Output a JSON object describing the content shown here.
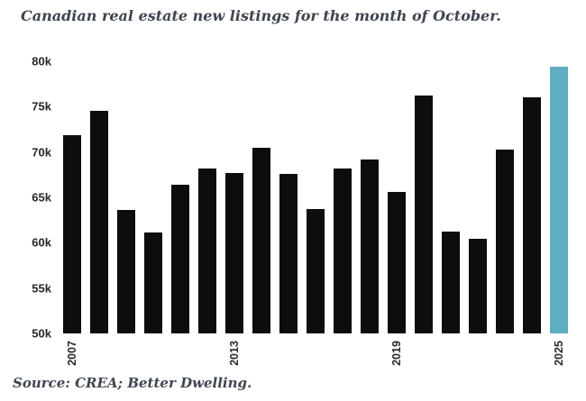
{
  "title": "Canadian real estate new listings for the month of October.",
  "source": "Source: CREA; Better Dwelling.",
  "colors": {
    "bar": "#0d0d0d",
    "highlight": "#5fadc4",
    "heading_text": "#3d4651",
    "tick_text": "#26292c",
    "background": "#ffffff"
  },
  "chart_data": {
    "type": "bar",
    "title": "Canadian real estate new listings for the month of October.",
    "xlabel": "",
    "ylabel": "",
    "unit": "thousands of new listings",
    "categories": [
      "2007",
      "2008",
      "2009",
      "2010",
      "2011",
      "2012",
      "2013",
      "2014",
      "2015",
      "2016",
      "2017",
      "2018",
      "2019",
      "2020",
      "2021",
      "2022",
      "2023",
      "2024",
      "2025"
    ],
    "values": [
      71.9,
      74.5,
      63.6,
      61.1,
      66.4,
      68.2,
      67.7,
      70.5,
      67.6,
      63.7,
      68.2,
      69.2,
      65.6,
      76.2,
      61.2,
      60.4,
      70.3,
      76.0,
      79.4
    ],
    "ylim": [
      50,
      80
    ],
    "ytick_labels": [
      "50k",
      "55k",
      "60k",
      "65k",
      "70k",
      "75k",
      "80k"
    ],
    "ytick_values": [
      50,
      55,
      60,
      65,
      70,
      75,
      80
    ],
    "xtick_labels_shown": [
      "2007",
      "2013",
      "2019",
      "2025"
    ],
    "highlight_category": "2025",
    "grid": false,
    "legend": false
  }
}
